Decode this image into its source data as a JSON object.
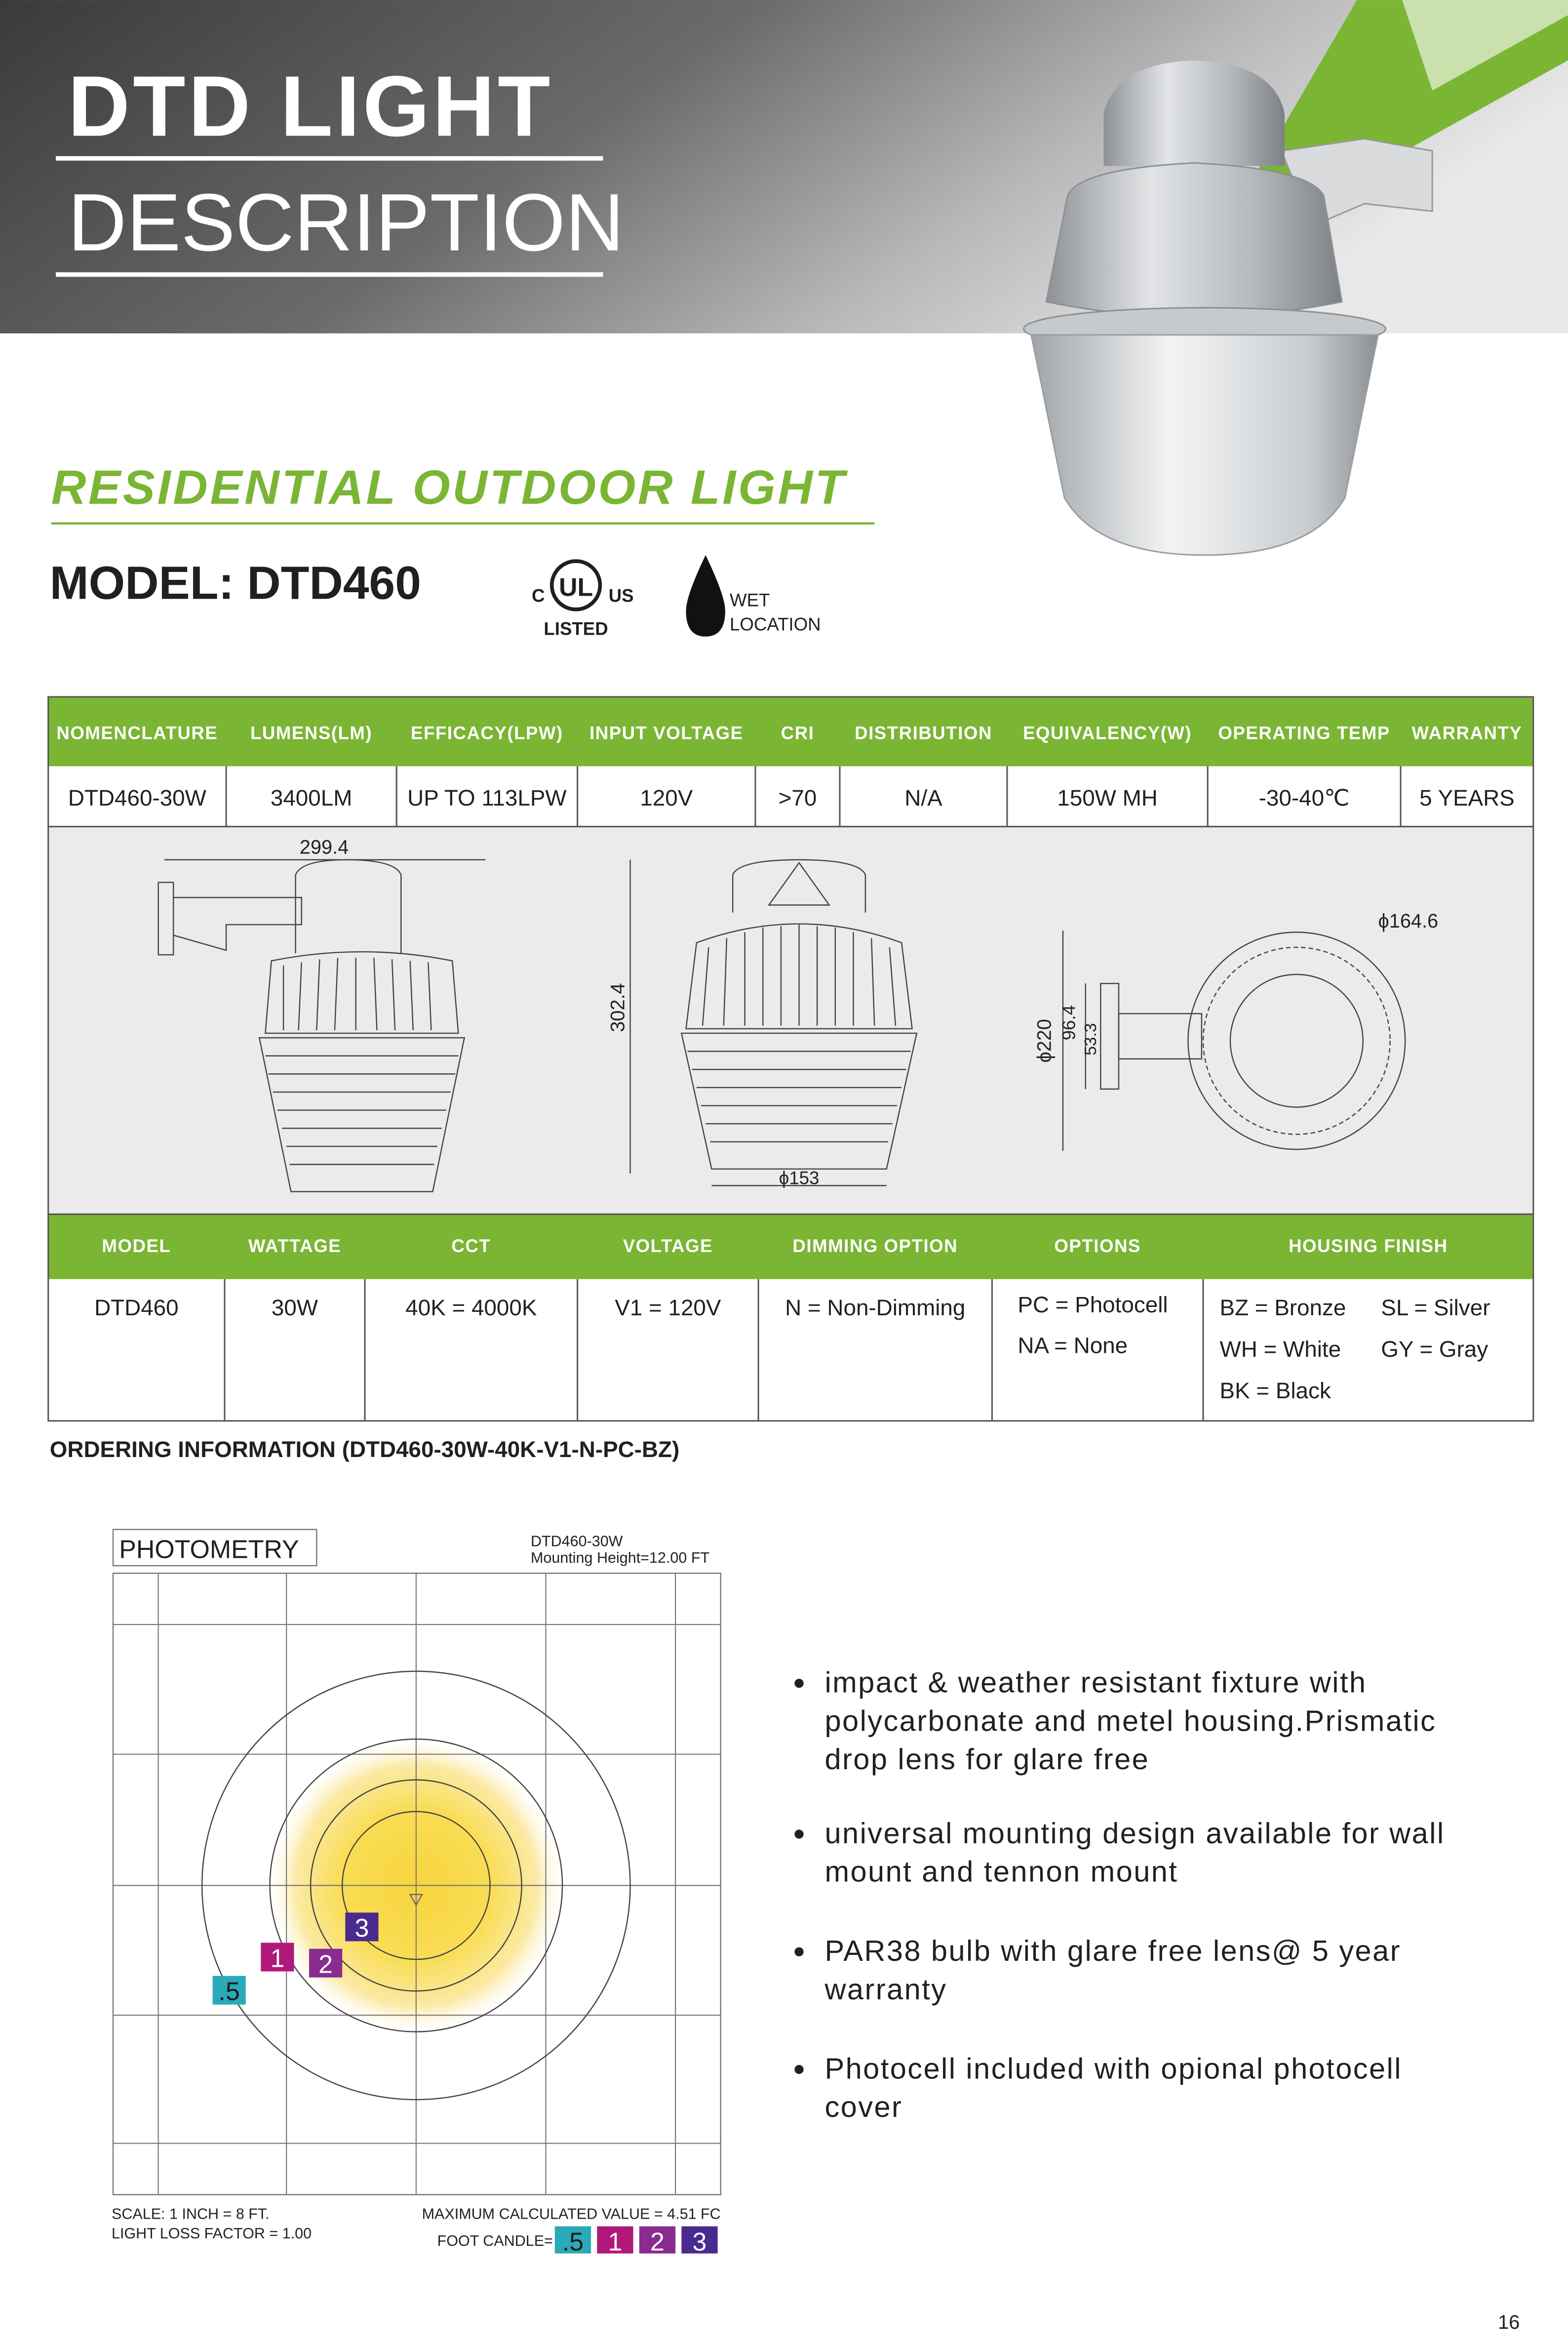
{
  "header": {
    "title": "DTD LIGHT",
    "subtitle": "DESCRIPTION"
  },
  "product": {
    "category": "RESIDENTIAL OUTDOOR LIGHT",
    "model": "MODEL: DTD460",
    "certification": {
      "left": "C",
      "mark": "UL",
      "right": "US",
      "listed": "LISTED"
    },
    "wet_location": [
      "WET",
      "LOCATION"
    ]
  },
  "spec_table": {
    "headers": [
      "NOMENCLATURE",
      "LUMENS(LM)",
      "EFFICACY(LPW)",
      "INPUT VOLTAGE",
      "CRI",
      "DISTRIBUTION",
      "EQUIVALENCY(W)",
      "OPERATING TEMP",
      "WARRANTY"
    ],
    "rows": [
      [
        "DTD460-30W",
        "3400LM",
        "UP TO 113LPW",
        "120V",
        ">70",
        "N/A",
        "150W MH",
        "-30-40℃",
        "5 YEARS"
      ]
    ]
  },
  "dimensions": {
    "side_width": "299.4",
    "height": "302.4",
    "bottom_diameter": "ϕ153",
    "top_diameter": "ϕ164.6",
    "outer_diameter": "ϕ220",
    "plate_height": "96.4",
    "plate_inner": "53.3"
  },
  "order_table": {
    "headers": [
      "MODEL",
      "WATTAGE",
      "CCT",
      "VOLTAGE",
      "DIMMING OPTION",
      "OPTIONS",
      "HOUSING FINISH"
    ],
    "rows": [
      [
        [
          "DTD460"
        ],
        [
          "30W"
        ],
        [
          "40K = 4000K"
        ],
        [
          "V1 = 120V"
        ],
        [
          "N = Non-Dimming"
        ],
        [
          "PC  = Photocell",
          "NA  = None"
        ],
        [
          "BZ  = Bronze",
          "SL  = Silver",
          "WH = White",
          "GY  = Gray",
          "BK  = Black"
        ]
      ]
    ]
  },
  "ordering_info": "ORDERING INFORMATION (DTD460-30W-40K-V1-N-PC-BZ)",
  "photometry": {
    "title": "PHOTOMETRY",
    "model": "DTD460-30W",
    "mounting": "Mounting Height=12.00 FT",
    "contours": [
      ".5",
      "1",
      "2",
      "3"
    ],
    "scale": "SCALE: 1 INCH = 8 FT.",
    "loss_factor": "LIGHT LOSS FACTOR = 1.00",
    "maximum": "MAXIMUM CALCULATED VALUE = 4.51 FC",
    "legend_label": "FOOT CANDLE=",
    "legend": [
      ".5",
      "1",
      "2",
      "3"
    ]
  },
  "features": [
    [
      "impact & weather resistant fixture with",
      "polycarbonate and metel housing.Prismatic",
      "drop lens for glare free"
    ],
    [
      "universal mounting design available for wall",
      "mount and tennon mount"
    ],
    [
      "PAR38 bulb with glare free lens@ 5 year",
      "warranty"
    ],
    [
      "Photocell included with opional photocell",
      "cover"
    ]
  ],
  "page_number": "16"
}
